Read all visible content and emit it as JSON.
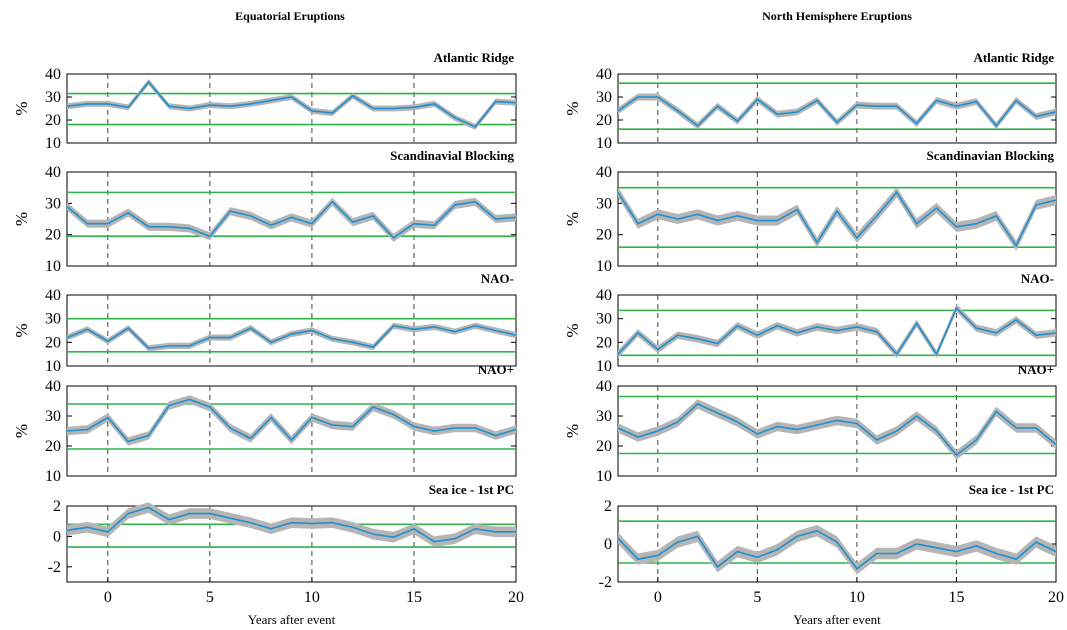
{
  "figure": {
    "colors": {
      "line": "#1f8fd0",
      "band": "#b5b5b5",
      "threshold": "#2db34a",
      "event": "#444444"
    }
  },
  "chart_data": [
    {
      "type": "line",
      "column_title": "Equatorial Eruptions",
      "title": "Atlantic Ridge",
      "ylabel": "%",
      "xlabel": "",
      "xlim": [
        -2,
        20
      ],
      "xticks": [],
      "ylim": [
        10,
        40
      ],
      "yticks": [
        "10",
        "20",
        "30",
        "40"
      ],
      "event_years": [
        0,
        5,
        10,
        15
      ],
      "thresholds": [
        31.5,
        18
      ],
      "x": [
        -2,
        -1,
        0,
        1,
        2,
        3,
        4,
        5,
        6,
        7,
        8,
        9,
        10,
        11,
        12,
        13,
        14,
        15,
        16,
        17,
        18,
        19,
        20
      ],
      "values": [
        26,
        27,
        27,
        25.5,
        36.5,
        26,
        25,
        26.5,
        26,
        27,
        28.5,
        30,
        24,
        23,
        30.5,
        25,
        25,
        25.5,
        27,
        21,
        17,
        28,
        27.5
      ],
      "band": 1.3
    },
    {
      "type": "line",
      "title": "Scandinavial Blocking",
      "ylabel": "%",
      "xlabel": "",
      "xlim": [
        -2,
        20
      ],
      "xticks": [],
      "ylim": [
        10,
        40
      ],
      "yticks": [
        "10",
        "20",
        "30",
        "40"
      ],
      "event_years": [
        0,
        5,
        10,
        15
      ],
      "thresholds": [
        33.5,
        19.5
      ],
      "x": [
        -2,
        -1,
        0,
        1,
        2,
        3,
        4,
        5,
        6,
        7,
        8,
        9,
        10,
        11,
        12,
        13,
        14,
        15,
        16,
        17,
        18,
        19,
        20
      ],
      "values": [
        29,
        23.5,
        23.5,
        27,
        22.5,
        22.5,
        22,
        19.5,
        27.5,
        26,
        23,
        25.5,
        23.5,
        30.5,
        24,
        26,
        19,
        23.5,
        23,
        29.5,
        30.5,
        25,
        25.5
      ],
      "band": 1.3
    },
    {
      "type": "line",
      "title": "NAO-",
      "ylabel": "%",
      "xlabel": "",
      "xlim": [
        -2,
        20
      ],
      "xticks": [],
      "ylim": [
        10,
        40
      ],
      "yticks": [
        "10",
        "20",
        "30",
        "40"
      ],
      "event_years": [
        0,
        5,
        10,
        15
      ],
      "thresholds": [
        30,
        16
      ],
      "x": [
        -2,
        -1,
        0,
        1,
        2,
        3,
        4,
        5,
        6,
        7,
        8,
        9,
        10,
        11,
        12,
        13,
        14,
        15,
        16,
        17,
        18,
        19,
        20
      ],
      "values": [
        22,
        25.5,
        20.5,
        26,
        17.5,
        18.5,
        18.5,
        22,
        22,
        26,
        20,
        23.5,
        25,
        21.5,
        20,
        18,
        27,
        25.5,
        26.5,
        24.5,
        27,
        25,
        23
      ],
      "band": 1.3
    },
    {
      "type": "line",
      "title": "NAO+",
      "ylabel": "%",
      "xlabel": "",
      "xlim": [
        -2,
        20
      ],
      "xticks": [],
      "ylim": [
        10,
        40
      ],
      "yticks": [
        "10",
        "20",
        "30",
        "40"
      ],
      "event_years": [
        0,
        5,
        10,
        15
      ],
      "thresholds": [
        34,
        19
      ],
      "x": [
        -2,
        -1,
        0,
        1,
        2,
        3,
        4,
        5,
        6,
        7,
        8,
        9,
        10,
        11,
        12,
        13,
        14,
        15,
        16,
        17,
        18,
        19,
        20
      ],
      "values": [
        25,
        25.5,
        29.5,
        21.5,
        23.5,
        33.5,
        35.5,
        33,
        26,
        22.5,
        29.5,
        22,
        29.5,
        27,
        26.5,
        33,
        30.5,
        26.5,
        25,
        26,
        26,
        23.5,
        25.5
      ],
      "band": 1.4
    },
    {
      "type": "line",
      "title": "Sea ice - 1st PC",
      "ylabel": "",
      "xlabel": "Years after event",
      "xlim": [
        -2,
        20
      ],
      "xticks": [
        "0",
        "5",
        "10",
        "15",
        "20"
      ],
      "xtick_values": [
        0,
        5,
        10,
        15,
        20
      ],
      "ylim": [
        -3,
        2
      ],
      "yticks": [
        "-2",
        "0",
        "2"
      ],
      "ytick_values": [
        -2,
        0,
        2
      ],
      "event_years": [
        0,
        5,
        10,
        15
      ],
      "thresholds": [
        0.8,
        -0.7
      ],
      "x": [
        -2,
        -1,
        0,
        1,
        2,
        3,
        4,
        5,
        6,
        7,
        8,
        9,
        10,
        11,
        12,
        13,
        14,
        15,
        16,
        17,
        18,
        19,
        20
      ],
      "values": [
        0.4,
        0.6,
        0.3,
        1.5,
        1.9,
        1.1,
        1.5,
        1.5,
        1.2,
        0.9,
        0.5,
        0.9,
        0.85,
        0.9,
        0.6,
        0.15,
        -0.05,
        0.5,
        -0.35,
        -0.15,
        0.5,
        0.3,
        0.3
      ],
      "band": 0.35
    },
    {
      "type": "line",
      "column_title": "North Hemisphere Eruptions",
      "title": "Atlantic Ridge",
      "ylabel": "%",
      "xlabel": "",
      "xlim": [
        -2,
        20
      ],
      "xticks": [],
      "ylim": [
        10,
        40
      ],
      "yticks": [
        "10",
        "20",
        "30",
        "40"
      ],
      "event_years": [
        0,
        5,
        10,
        15
      ],
      "thresholds": [
        36,
        16
      ],
      "x": [
        -2,
        -1,
        0,
        1,
        2,
        3,
        4,
        5,
        6,
        7,
        8,
        9,
        10,
        11,
        12,
        13,
        14,
        15,
        16,
        17,
        18,
        19,
        20
      ],
      "values": [
        24,
        30,
        30,
        24,
        17.5,
        26,
        19.5,
        29,
        22.5,
        23.5,
        28.5,
        19,
        26.5,
        26,
        26,
        18.5,
        28.5,
        26,
        28,
        17.5,
        28.5,
        21.5,
        23.5
      ],
      "band": 1.5
    },
    {
      "type": "line",
      "title": "Scandinavian Blocking",
      "ylabel": "%",
      "xlabel": "",
      "xlim": [
        -2,
        20
      ],
      "xticks": [],
      "ylim": [
        10,
        40
      ],
      "yticks": [
        "10",
        "20",
        "30",
        "40"
      ],
      "event_years": [
        0,
        5,
        10,
        15
      ],
      "thresholds": [
        35,
        16
      ],
      "x": [
        -2,
        -1,
        0,
        1,
        2,
        3,
        4,
        5,
        6,
        7,
        8,
        9,
        10,
        11,
        12,
        13,
        14,
        15,
        16,
        17,
        18,
        19,
        20
      ],
      "values": [
        33.5,
        23.5,
        26.5,
        25,
        26.5,
        24.5,
        26,
        24.5,
        24.5,
        28,
        17.5,
        27.5,
        19,
        26,
        33.5,
        23.5,
        28.5,
        22.5,
        23.5,
        26,
        16.5,
        29.5,
        31
      ],
      "band": 1.6
    },
    {
      "type": "line",
      "title": "NAO-",
      "ylabel": "%",
      "xlabel": "",
      "xlim": [
        -2,
        20
      ],
      "xticks": [],
      "ylim": [
        10,
        40
      ],
      "yticks": [
        "10",
        "20",
        "30",
        "40"
      ],
      "event_years": [
        0,
        5,
        10,
        15
      ],
      "thresholds": [
        33.5,
        14.5
      ],
      "x": [
        -2,
        -1,
        0,
        1,
        2,
        3,
        4,
        5,
        6,
        7,
        8,
        9,
        10,
        11,
        12,
        13,
        14,
        15,
        16,
        17,
        18,
        19,
        20
      ],
      "values": [
        15,
        24,
        17,
        23,
        21.5,
        19.5,
        27,
        23,
        27,
        24,
        26.5,
        25,
        26.5,
        24.5,
        15,
        28,
        15,
        34.5,
        26,
        24,
        29.5,
        23,
        24
      ],
      "band": 1.6
    },
    {
      "type": "line",
      "title": "NAO+",
      "ylabel": "%",
      "xlabel": "",
      "xlim": [
        -2,
        20
      ],
      "xticks": [],
      "ylim": [
        10,
        40
      ],
      "yticks": [
        "10",
        "20",
        "30",
        "40"
      ],
      "event_years": [
        0,
        5,
        10,
        15
      ],
      "thresholds": [
        36.5,
        17.5
      ],
      "x": [
        -2,
        -1,
        0,
        1,
        2,
        3,
        4,
        5,
        6,
        7,
        8,
        9,
        10,
        11,
        12,
        13,
        14,
        15,
        16,
        17,
        18,
        19,
        20
      ],
      "values": [
        26,
        23,
        25,
        28,
        34,
        31,
        28,
        24,
        26.5,
        25.5,
        27,
        28.5,
        27.5,
        22,
        25,
        30,
        25,
        17,
        22,
        31.5,
        26,
        26,
        20.5
      ],
      "band": 1.6
    },
    {
      "type": "line",
      "title": "Sea ice - 1st PC",
      "ylabel": "",
      "xlabel": "Years after event",
      "xlim": [
        -2,
        20
      ],
      "xticks": [
        "0",
        "5",
        "10",
        "15",
        "20"
      ],
      "xtick_values": [
        0,
        5,
        10,
        15,
        20
      ],
      "ylim": [
        -2,
        2
      ],
      "yticks": [
        "-2",
        "0",
        "2"
      ],
      "ytick_values": [
        -2,
        0,
        2
      ],
      "event_years": [
        0,
        5,
        10,
        15
      ],
      "thresholds": [
        1.2,
        -1.0
      ],
      "x": [
        -2,
        -1,
        0,
        1,
        2,
        3,
        4,
        5,
        6,
        7,
        8,
        9,
        10,
        11,
        12,
        13,
        14,
        15,
        16,
        17,
        18,
        19,
        20
      ],
      "values": [
        0.3,
        -0.8,
        -0.6,
        0.1,
        0.4,
        -1.2,
        -0.4,
        -0.7,
        -0.3,
        0.4,
        0.7,
        0.1,
        -1.3,
        -0.5,
        -0.5,
        0.0,
        -0.2,
        -0.4,
        -0.1,
        -0.5,
        -0.8,
        0.1,
        -0.4
      ],
      "band": 0.3
    }
  ]
}
